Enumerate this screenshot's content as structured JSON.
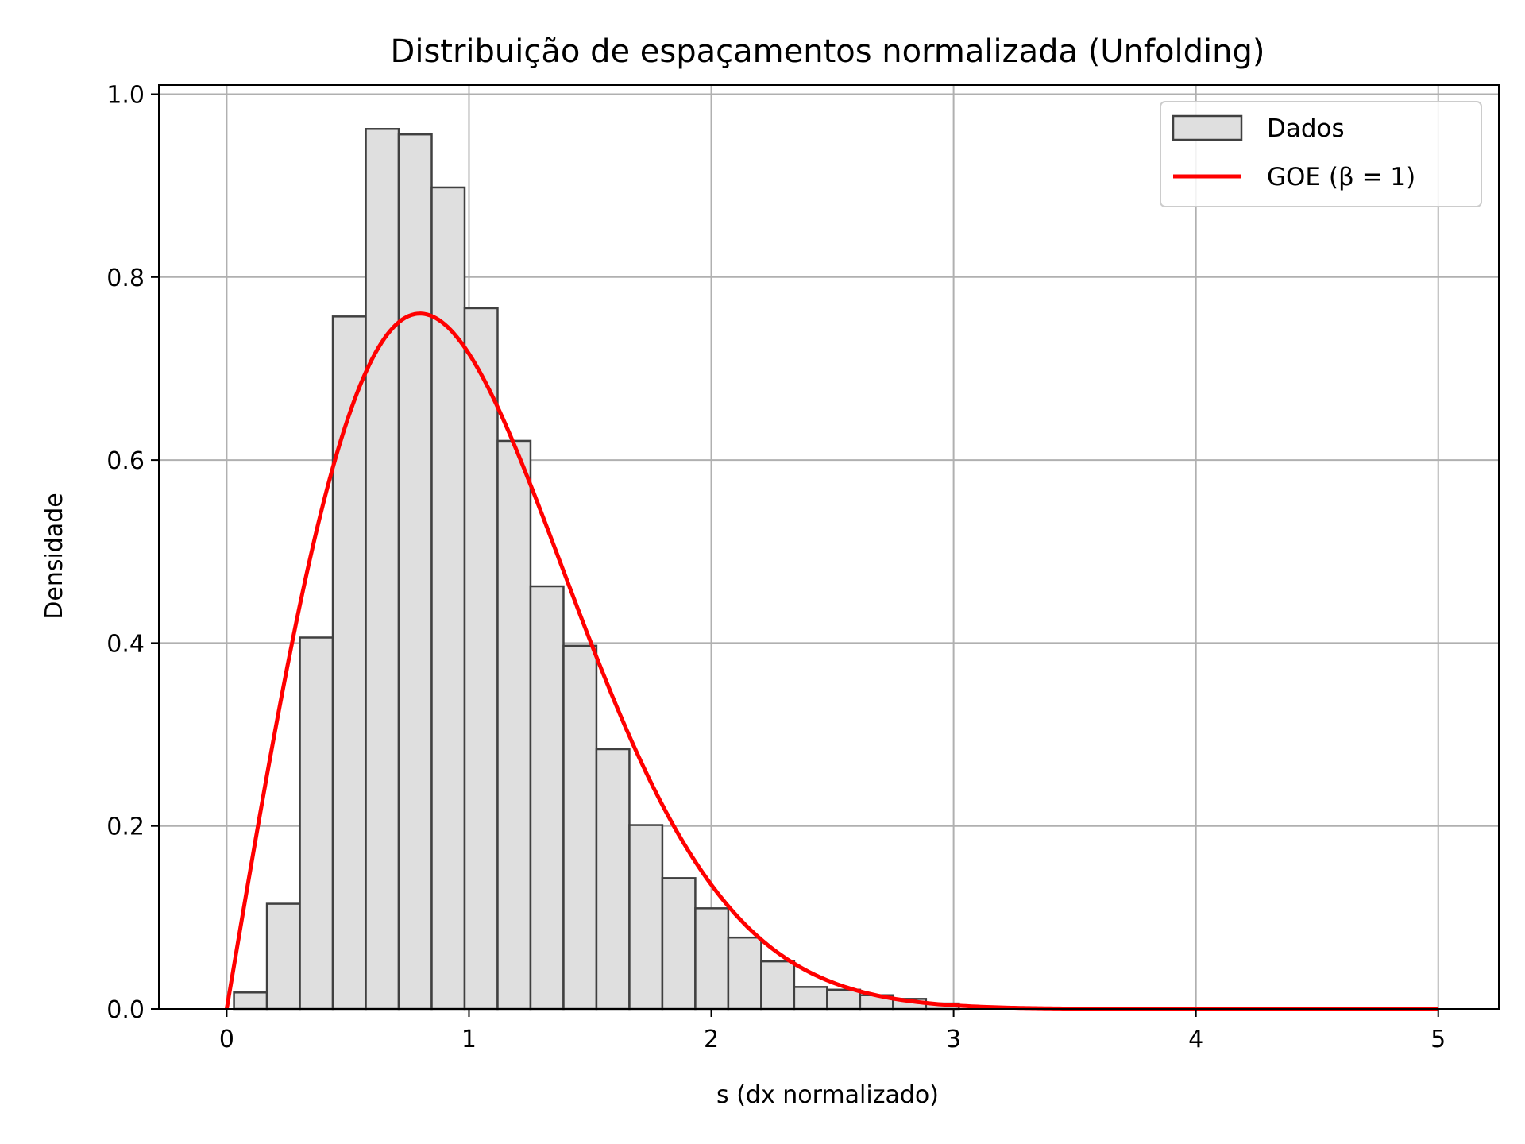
{
  "chart_data": {
    "type": "bar",
    "title": "Distribuição de espaçamentos normalizada (Unfolding)",
    "xlabel": "s (dx normalizado)",
    "ylabel": "Densidade",
    "xlim": [
      -0.28,
      5.25
    ],
    "ylim": [
      0,
      1.01
    ],
    "xticks": [
      0,
      1,
      2,
      3,
      4,
      5
    ],
    "xtick_labels": [
      "0",
      "1",
      "2",
      "3",
      "4",
      "5"
    ],
    "yticks": [
      0.0,
      0.2,
      0.4,
      0.6,
      0.8,
      1.0
    ],
    "ytick_labels": [
      "0.0",
      "0.2",
      "0.4",
      "0.6",
      "0.8",
      "1.0"
    ],
    "grid": true,
    "legend_position": "top-right",
    "histogram": {
      "name": "Dados",
      "color": "#dfdfdf",
      "edge_color": "#404040",
      "bin_edges": [
        0.03,
        0.166,
        0.302,
        0.438,
        0.574,
        0.71,
        0.846,
        0.982,
        1.118,
        1.254,
        1.39,
        1.526,
        1.662,
        1.798,
        1.934,
        2.07,
        2.206,
        2.342,
        2.478,
        2.614,
        2.75,
        2.886,
        3.022
      ],
      "values": [
        0.018,
        0.115,
        0.406,
        0.757,
        0.962,
        0.956,
        0.898,
        0.766,
        0.621,
        0.462,
        0.397,
        0.284,
        0.201,
        0.143,
        0.11,
        0.078,
        0.052,
        0.024,
        0.021,
        0.015,
        0.011,
        0.006
      ]
    },
    "curve": {
      "name": "GOE (β = 1)",
      "color": "#ff0000",
      "formula": "(π/2) s exp(-π s²/4)",
      "x_range": [
        0,
        5
      ]
    }
  }
}
